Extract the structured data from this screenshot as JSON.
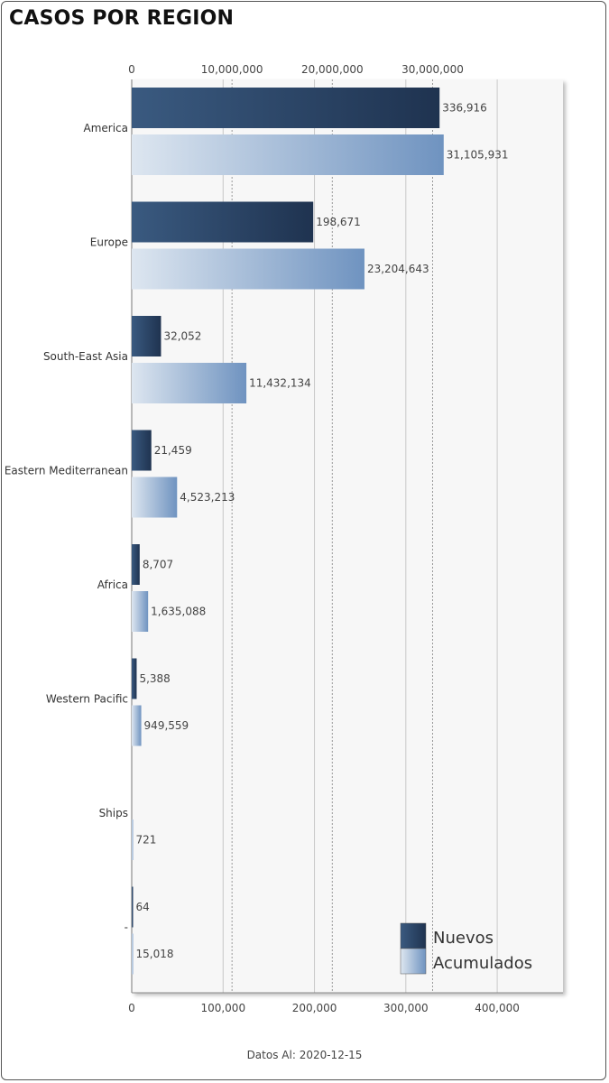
{
  "title": "CASOS POR REGION",
  "footer": {
    "label": "Datos Al:",
    "date": "2020-12-15"
  },
  "colors": {
    "nuevos_start": "#3a5a80",
    "nuevos_end": "#1f3350",
    "acumulados_start": "#dde6f0",
    "acumulados_end": "#6f93c0",
    "plot_bg": "#f7f7f7"
  },
  "chart_data": {
    "type": "bar",
    "orientation": "horizontal",
    "categories": [
      "America",
      "Europe",
      "South-East Asia",
      "Eastern Mediterranean",
      "Africa",
      "Western Pacific",
      "Ships",
      "-"
    ],
    "series": [
      {
        "name": "Nuevos",
        "axis": "bottom",
        "values": [
          336916,
          198671,
          32052,
          21459,
          8707,
          5388,
          0,
          64
        ],
        "labels": [
          "336,916",
          "198,671",
          "32,052",
          "21,459",
          "8,707",
          "5,388",
          "",
          "64"
        ]
      },
      {
        "name": "Acumulados",
        "axis": "top",
        "values": [
          31105931,
          23204643,
          11432134,
          4523213,
          1635088,
          949559,
          721,
          15018
        ],
        "labels": [
          "31,105,931",
          "23,204,643",
          "11,432,134",
          "4,523,213",
          "1,635,088",
          "949,559",
          "721",
          "15,018"
        ]
      }
    ],
    "x_top": {
      "range": [
        0,
        43000000
      ],
      "ticks": [
        0,
        10000000,
        20000000,
        30000000
      ],
      "tick_labels": [
        "0",
        "10,000,000",
        "20,000,000",
        "30,000,000"
      ]
    },
    "x_bottom": {
      "range": [
        0,
        472000
      ],
      "ticks": [
        0,
        100000,
        200000,
        300000,
        400000
      ],
      "tick_labels": [
        "0",
        "100,000",
        "200,000",
        "300,000",
        "400,000"
      ]
    },
    "legend": {
      "position": "bottom-right",
      "entries": [
        "Nuevos",
        "Acumulados"
      ]
    }
  }
}
